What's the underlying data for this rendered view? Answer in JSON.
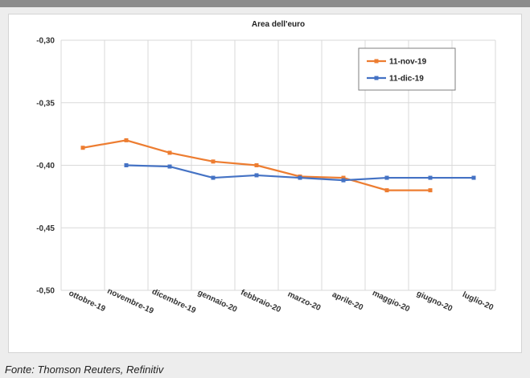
{
  "source_note": "Fonte: Thomson Reuters, Refinitiv",
  "chart_data": {
    "type": "line",
    "title": "Area dell'euro",
    "categories": [
      "ottobre-19",
      "novembre-19",
      "dicembre-19",
      "gennaio-20",
      "febbraio-20",
      "marzo-20",
      "aprile-20",
      "maggio-20",
      "giugno-20",
      "luglio-20"
    ],
    "ylim": [
      -0.5,
      -0.3
    ],
    "yticks": [
      -0.3,
      -0.35,
      -0.4,
      -0.45,
      -0.5
    ],
    "ytick_labels": [
      "-0,30",
      "-0,35",
      "-0,40",
      "-0,45",
      "-0,50"
    ],
    "grid": true,
    "legend_position": "top-right",
    "series": [
      {
        "name": "11-nov-19",
        "color": "#ed7d31",
        "values": [
          -0.386,
          -0.38,
          -0.39,
          -0.397,
          -0.4,
          -0.409,
          -0.41,
          -0.42,
          -0.42,
          null
        ]
      },
      {
        "name": "11-dic-19",
        "color": "#4472c4",
        "values": [
          null,
          -0.4,
          -0.401,
          -0.41,
          -0.408,
          -0.41,
          -0.412,
          -0.41,
          -0.41,
          -0.41
        ]
      }
    ]
  }
}
